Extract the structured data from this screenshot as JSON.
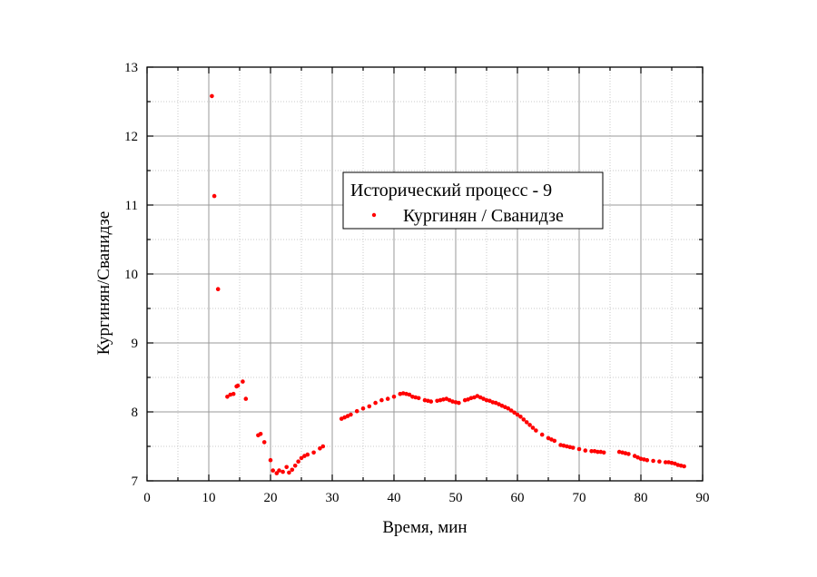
{
  "chart_data": {
    "type": "scatter",
    "title": "",
    "xlabel": "Время, мин",
    "ylabel": "Кургинян/Сванидзе",
    "xlim": [
      0,
      90
    ],
    "ylim": [
      7,
      13
    ],
    "x_ticks": [
      0,
      10,
      20,
      30,
      40,
      50,
      60,
      70,
      80,
      90
    ],
    "y_ticks": [
      7,
      8,
      9,
      10,
      11,
      12,
      13
    ],
    "grid": true,
    "legend": {
      "title": "Исторический процесс - 9",
      "placement": "center",
      "entries": [
        "Кургинян / Сванидзе"
      ]
    },
    "series": [
      {
        "name": "Кургинян / Сванидзе",
        "color": "#ff0000",
        "points": [
          [
            10.5,
            12.58
          ],
          [
            10.9,
            11.13
          ],
          [
            11.5,
            9.78
          ],
          [
            13.0,
            8.22
          ],
          [
            13.5,
            8.25
          ],
          [
            14.0,
            8.26
          ],
          [
            14.5,
            8.37
          ],
          [
            14.7,
            8.38
          ],
          [
            15.5,
            8.44
          ],
          [
            16.0,
            8.19
          ],
          [
            18.0,
            7.66
          ],
          [
            18.4,
            7.68
          ],
          [
            19.0,
            7.56
          ],
          [
            20.0,
            7.3
          ],
          [
            20.4,
            7.15
          ],
          [
            21.0,
            7.11
          ],
          [
            21.4,
            7.15
          ],
          [
            22.0,
            7.13
          ],
          [
            22.6,
            7.2
          ],
          [
            23.0,
            7.12
          ],
          [
            23.5,
            7.16
          ],
          [
            24.0,
            7.22
          ],
          [
            24.5,
            7.28
          ],
          [
            25.0,
            7.33
          ],
          [
            25.5,
            7.36
          ],
          [
            26.0,
            7.38
          ],
          [
            27.0,
            7.41
          ],
          [
            28.0,
            7.47
          ],
          [
            28.5,
            7.5
          ],
          [
            31.5,
            7.9
          ],
          [
            32.0,
            7.92
          ],
          [
            32.5,
            7.94
          ],
          [
            33.0,
            7.96
          ],
          [
            34.0,
            8.01
          ],
          [
            35.0,
            8.05
          ],
          [
            36.0,
            8.08
          ],
          [
            37.0,
            8.13
          ],
          [
            38.0,
            8.17
          ],
          [
            39.0,
            8.19
          ],
          [
            40.0,
            8.22
          ],
          [
            41.0,
            8.26
          ],
          [
            41.5,
            8.27
          ],
          [
            42.0,
            8.26
          ],
          [
            42.5,
            8.25
          ],
          [
            43.0,
            8.22
          ],
          [
            43.5,
            8.21
          ],
          [
            44.0,
            8.2
          ],
          [
            45.0,
            8.17
          ],
          [
            45.5,
            8.16
          ],
          [
            46.0,
            8.15
          ],
          [
            47.0,
            8.16
          ],
          [
            47.5,
            8.17
          ],
          [
            48.0,
            8.18
          ],
          [
            48.5,
            8.19
          ],
          [
            49.0,
            8.17
          ],
          [
            49.5,
            8.15
          ],
          [
            50.0,
            8.14
          ],
          [
            50.5,
            8.13
          ],
          [
            51.5,
            8.17
          ],
          [
            52.0,
            8.18
          ],
          [
            52.5,
            8.2
          ],
          [
            53.0,
            8.21
          ],
          [
            53.5,
            8.23
          ],
          [
            54.0,
            8.21
          ],
          [
            54.5,
            8.19
          ],
          [
            55.0,
            8.17
          ],
          [
            55.5,
            8.16
          ],
          [
            56.0,
            8.14
          ],
          [
            56.5,
            8.13
          ],
          [
            57.0,
            8.11
          ],
          [
            57.5,
            8.09
          ],
          [
            58.0,
            8.07
          ],
          [
            58.5,
            8.05
          ],
          [
            59.0,
            8.02
          ],
          [
            59.5,
            7.99
          ],
          [
            60.0,
            7.96
          ],
          [
            60.5,
            7.93
          ],
          [
            61.0,
            7.89
          ],
          [
            61.5,
            7.85
          ],
          [
            62.0,
            7.81
          ],
          [
            62.5,
            7.77
          ],
          [
            63.0,
            7.73
          ],
          [
            64.0,
            7.67
          ],
          [
            65.0,
            7.62
          ],
          [
            65.5,
            7.6
          ],
          [
            66.0,
            7.58
          ],
          [
            67.0,
            7.52
          ],
          [
            67.5,
            7.51
          ],
          [
            68.0,
            7.5
          ],
          [
            68.5,
            7.49
          ],
          [
            69.0,
            7.48
          ],
          [
            70.0,
            7.46
          ],
          [
            71.0,
            7.44
          ],
          [
            72.0,
            7.43
          ],
          [
            72.5,
            7.43
          ],
          [
            73.0,
            7.42
          ],
          [
            73.5,
            7.42
          ],
          [
            74.0,
            7.41
          ],
          [
            76.5,
            7.42
          ],
          [
            77.0,
            7.41
          ],
          [
            77.5,
            7.4
          ],
          [
            78.0,
            7.39
          ],
          [
            79.0,
            7.36
          ],
          [
            79.5,
            7.34
          ],
          [
            80.0,
            7.32
          ],
          [
            80.5,
            7.31
          ],
          [
            81.0,
            7.3
          ],
          [
            82.0,
            7.29
          ],
          [
            83.0,
            7.28
          ],
          [
            84.0,
            7.27
          ],
          [
            84.5,
            7.27
          ],
          [
            85.0,
            7.26
          ],
          [
            85.5,
            7.25
          ],
          [
            86.0,
            7.23
          ],
          [
            86.5,
            7.22
          ],
          [
            87.0,
            7.21
          ]
        ]
      }
    ]
  }
}
